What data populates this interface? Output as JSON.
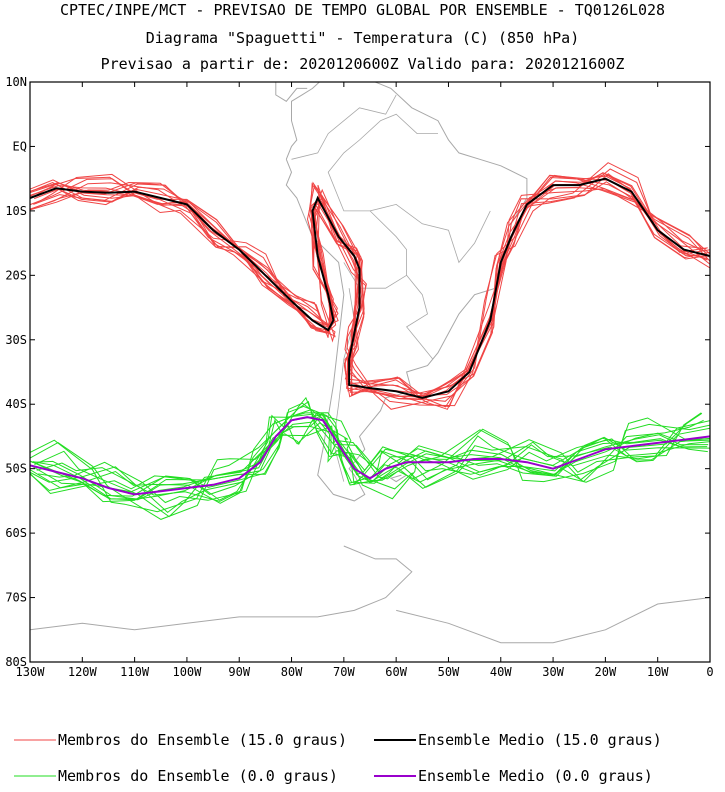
{
  "header": {
    "line1": "CPTEC/INPE/MCT - PREVISAO DE TEMPO GLOBAL POR ENSEMBLE - TQ0126L028",
    "line2": "Diagrama \"Spaguetti\" - Temperatura (C) (850 hPa)",
    "line3": "Previsao a partir de: 2020120600Z  Valido para: 2020121600Z"
  },
  "chart_data": {
    "type": "line",
    "title": "Diagrama \"Spaguetti\" - Temperatura (C) (850 hPa)",
    "xlim": [
      -130,
      0
    ],
    "ylim": [
      -80,
      10
    ],
    "x_ticks": [
      {
        "v": -130,
        "label": "130W"
      },
      {
        "v": -120,
        "label": "120W"
      },
      {
        "v": -110,
        "label": "110W"
      },
      {
        "v": -100,
        "label": "100W"
      },
      {
        "v": -90,
        "label": "90W"
      },
      {
        "v": -80,
        "label": "80W"
      },
      {
        "v": -70,
        "label": "70W"
      },
      {
        "v": -60,
        "label": "60W"
      },
      {
        "v": -50,
        "label": "50W"
      },
      {
        "v": -40,
        "label": "40W"
      },
      {
        "v": -30,
        "label": "30W"
      },
      {
        "v": -20,
        "label": "20W"
      },
      {
        "v": -10,
        "label": "10W"
      },
      {
        "v": 0,
        "label": "0"
      }
    ],
    "y_ticks": [
      {
        "v": 10,
        "label": "10N"
      },
      {
        "v": 0,
        "label": "EQ"
      },
      {
        "v": -10,
        "label": "10S"
      },
      {
        "v": -20,
        "label": "20S"
      },
      {
        "v": -30,
        "label": "30S"
      },
      {
        "v": -40,
        "label": "40S"
      },
      {
        "v": -50,
        "label": "50S"
      },
      {
        "v": -60,
        "label": "60S"
      },
      {
        "v": -70,
        "label": "70S"
      },
      {
        "v": -80,
        "label": "80S"
      }
    ],
    "series": [
      {
        "name": "Ensemble Medio (15.0 graus)",
        "color": "#000000",
        "x": [
          -130,
          -125,
          -120,
          -115,
          -110,
          -105,
          -100,
          -95,
          -90,
          -85,
          -80,
          -76,
          -73,
          -72,
          -73,
          -75,
          -76,
          -75,
          -71,
          -68,
          -67,
          -67,
          -68,
          -69,
          -69,
          -65,
          -60,
          -55,
          -50,
          -46,
          -42,
          -40,
          -38,
          -35,
          -30,
          -25,
          -20,
          -15,
          -10,
          -5,
          0
        ],
        "y": [
          -8,
          -6.5,
          -7,
          -7.2,
          -7,
          -8,
          -9,
          -13,
          -16,
          -20,
          -24,
          -27,
          -28.5,
          -27,
          -23,
          -17,
          -10,
          -8,
          -14,
          -17,
          -19,
          -25,
          -29,
          -33,
          -37,
          -37.5,
          -38,
          -39,
          -38,
          -35,
          -27,
          -18,
          -14,
          -9,
          -6,
          -6,
          -5,
          -7,
          -13,
          -16,
          -17
        ]
      },
      {
        "name": "Ensemble Medio (0.0 graus)",
        "color": "#9900cc",
        "x": [
          -130,
          -125,
          -120,
          -115,
          -110,
          -105,
          -100,
          -95,
          -90,
          -86,
          -83,
          -80,
          -77,
          -74,
          -72,
          -70,
          -68,
          -65,
          -62,
          -58,
          -55,
          -50,
          -45,
          -40,
          -35,
          -30,
          -25,
          -20,
          -15,
          -10,
          -5,
          0
        ],
        "y": [
          -49.5,
          -50.5,
          -51.5,
          -53,
          -54,
          -53.5,
          -53,
          -52.5,
          -51.5,
          -49,
          -45,
          -42.5,
          -42,
          -42.5,
          -45,
          -47.5,
          -50,
          -51.5,
          -50,
          -49,
          -49,
          -49,
          -48.5,
          -48.5,
          -49,
          -50,
          -48.5,
          -47,
          -46.5,
          -46,
          -45.5,
          -45
        ]
      }
    ],
    "legend": [
      {
        "label": "Membros do Ensemble (15.0 graus)",
        "color": "#f04545"
      },
      {
        "label": "Ensemble Medio (15.0 graus)",
        "color": "#000000"
      },
      {
        "label": "Membros do Ensemble (0.0 graus)",
        "color": "#22dd22"
      },
      {
        "label": "Ensemble Medio (0.0 graus)",
        "color": "#9900cc"
      }
    ],
    "legend_position": "bottom",
    "ensemble_members": {
      "warm_color": "#f04545",
      "cold_color": "#22dd22",
      "count": 14
    },
    "coastline_color": "#a8a8a8",
    "grid": false
  }
}
